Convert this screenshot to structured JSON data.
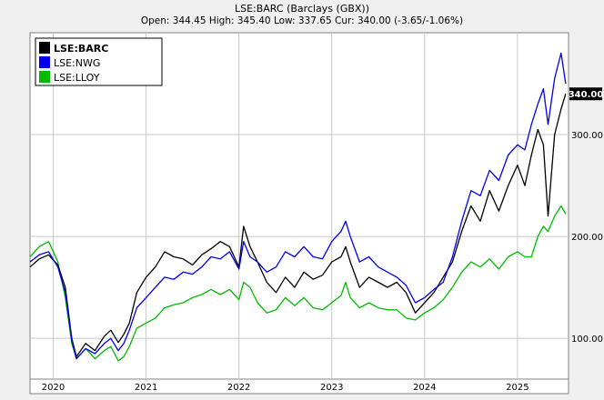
{
  "chart_data": {
    "type": "line",
    "title": "LSE:BARC (Barclays (GBX))",
    "subtitle": "Open: 344.45 High: 345.40 Low: 337.65 Cur: 340.00 (-3.65/-1.06%)",
    "current_label": "340.00",
    "x_ticks": [
      "2020",
      "2021",
      "2022",
      "2023",
      "2024",
      "2025"
    ],
    "y_ticks": [
      100,
      200,
      300
    ],
    "ylim": [
      60,
      400
    ],
    "xlim": [
      2019.75,
      2025.55
    ],
    "legend_position": "top-left",
    "grid": true,
    "colors": {
      "background": "#ffffff",
      "frame": "#f0f0f0",
      "grid": "#c8c8c8",
      "barc": "#000000",
      "nwg": "#0000ee",
      "lloy": "#00bb00"
    },
    "series": [
      {
        "name": "LSE:BARC",
        "color": "#000000",
        "bold": true,
        "x": [
          2019.75,
          2019.85,
          2019.95,
          2020.05,
          2020.13,
          2020.2,
          2020.25,
          2020.35,
          2020.45,
          2020.55,
          2020.62,
          2020.7,
          2020.76,
          2020.82,
          2020.9,
          2021.0,
          2021.1,
          2021.2,
          2021.3,
          2021.4,
          2021.5,
          2021.6,
          2021.7,
          2021.8,
          2021.9,
          2022.0,
          2022.05,
          2022.12,
          2022.2,
          2022.3,
          2022.4,
          2022.5,
          2022.6,
          2022.7,
          2022.8,
          2022.9,
          2023.0,
          2023.1,
          2023.15,
          2023.2,
          2023.3,
          2023.4,
          2023.5,
          2023.6,
          2023.7,
          2023.8,
          2023.9,
          2024.0,
          2024.1,
          2024.2,
          2024.3,
          2024.4,
          2024.5,
          2024.6,
          2024.7,
          2024.8,
          2024.9,
          2025.0,
          2025.08,
          2025.15,
          2025.22,
          2025.28,
          2025.33,
          2025.4,
          2025.47,
          2025.52
        ],
        "y": [
          170,
          178,
          182,
          172,
          150,
          100,
          82,
          95,
          88,
          102,
          108,
          96,
          104,
          115,
          145,
          160,
          170,
          185,
          180,
          178,
          172,
          182,
          188,
          195,
          190,
          170,
          210,
          190,
          175,
          155,
          145,
          160,
          150,
          165,
          158,
          162,
          175,
          180,
          190,
          175,
          150,
          160,
          155,
          150,
          155,
          145,
          125,
          135,
          145,
          160,
          175,
          205,
          230,
          215,
          245,
          225,
          250,
          270,
          250,
          280,
          305,
          290,
          220,
          300,
          325,
          340
        ]
      },
      {
        "name": "LSE:NWG",
        "color": "#0000ee",
        "bold": false,
        "x": [
          2019.75,
          2019.85,
          2019.95,
          2020.05,
          2020.13,
          2020.2,
          2020.25,
          2020.35,
          2020.45,
          2020.55,
          2020.62,
          2020.7,
          2020.76,
          2020.82,
          2020.9,
          2021.0,
          2021.1,
          2021.2,
          2021.3,
          2021.4,
          2021.5,
          2021.6,
          2021.7,
          2021.8,
          2021.9,
          2022.0,
          2022.05,
          2022.12,
          2022.2,
          2022.3,
          2022.4,
          2022.5,
          2022.6,
          2022.7,
          2022.8,
          2022.9,
          2023.0,
          2023.1,
          2023.15,
          2023.2,
          2023.3,
          2023.4,
          2023.5,
          2023.6,
          2023.7,
          2023.8,
          2023.9,
          2024.0,
          2024.1,
          2024.2,
          2024.3,
          2024.4,
          2024.5,
          2024.6,
          2024.7,
          2024.8,
          2024.9,
          2025.0,
          2025.08,
          2025.15,
          2025.22,
          2025.28,
          2025.33,
          2025.4,
          2025.47,
          2025.52
        ],
        "y": [
          175,
          182,
          185,
          170,
          145,
          98,
          80,
          90,
          85,
          95,
          100,
          88,
          95,
          108,
          130,
          140,
          150,
          160,
          158,
          165,
          163,
          170,
          180,
          178,
          185,
          168,
          195,
          180,
          175,
          165,
          170,
          185,
          180,
          190,
          180,
          178,
          195,
          205,
          215,
          200,
          175,
          180,
          170,
          165,
          160,
          152,
          135,
          140,
          148,
          155,
          180,
          215,
          245,
          240,
          265,
          255,
          280,
          290,
          285,
          310,
          330,
          345,
          310,
          355,
          380,
          350
        ]
      },
      {
        "name": "LSE:LLOY",
        "color": "#00bb00",
        "bold": false,
        "x": [
          2019.75,
          2019.85,
          2019.95,
          2020.05,
          2020.13,
          2020.2,
          2020.25,
          2020.35,
          2020.45,
          2020.55,
          2020.62,
          2020.7,
          2020.76,
          2020.82,
          2020.9,
          2021.0,
          2021.1,
          2021.2,
          2021.3,
          2021.4,
          2021.5,
          2021.6,
          2021.7,
          2021.8,
          2021.9,
          2022.0,
          2022.05,
          2022.12,
          2022.2,
          2022.3,
          2022.4,
          2022.5,
          2022.6,
          2022.7,
          2022.8,
          2022.9,
          2023.0,
          2023.1,
          2023.15,
          2023.2,
          2023.3,
          2023.4,
          2023.5,
          2023.6,
          2023.7,
          2023.8,
          2023.9,
          2024.0,
          2024.1,
          2024.2,
          2024.3,
          2024.4,
          2024.5,
          2024.6,
          2024.7,
          2024.8,
          2024.9,
          2025.0,
          2025.08,
          2025.15,
          2025.22,
          2025.28,
          2025.33,
          2025.4,
          2025.47,
          2025.52
        ],
        "y": [
          180,
          190,
          195,
          175,
          140,
          95,
          80,
          90,
          80,
          88,
          92,
          78,
          82,
          92,
          110,
          115,
          120,
          130,
          133,
          135,
          140,
          143,
          148,
          143,
          148,
          138,
          155,
          150,
          135,
          125,
          128,
          140,
          132,
          140,
          130,
          128,
          135,
          142,
          155,
          140,
          130,
          135,
          130,
          128,
          128,
          120,
          118,
          125,
          130,
          138,
          150,
          165,
          175,
          170,
          178,
          168,
          180,
          185,
          180,
          180,
          200,
          210,
          205,
          220,
          230,
          222
        ]
      }
    ]
  }
}
